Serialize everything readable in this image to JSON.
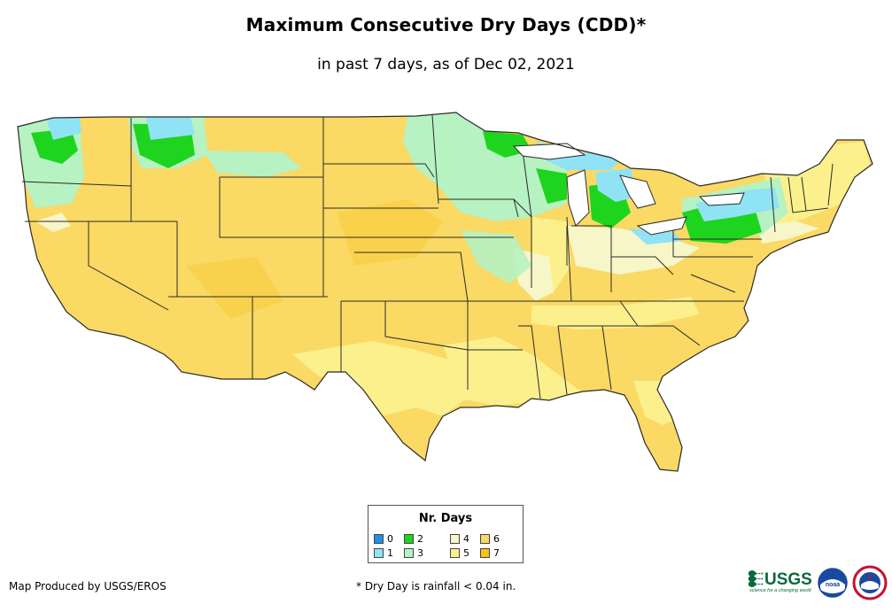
{
  "title": "Maximum Consecutive Dry Days (CDD)*",
  "subtitle": "in past 7 days, as of Dec 02, 2021",
  "legend": {
    "title": "Nr. Days",
    "items": [
      {
        "label": "0",
        "color": "#1e90e6"
      },
      {
        "label": "1",
        "color": "#8fe3f5"
      },
      {
        "label": "2",
        "color": "#1ed41e"
      },
      {
        "label": "3",
        "color": "#b6f2c2"
      },
      {
        "label": "4",
        "color": "#f7f6c8"
      },
      {
        "label": "5",
        "color": "#fbf08c"
      },
      {
        "label": "6",
        "color": "#fad964"
      },
      {
        "label": "7",
        "color": "#f5c21c"
      }
    ]
  },
  "footer": {
    "credit": "Map Produced by USGS/EROS",
    "note": "* Dry Day is rainfall < 0.04 in."
  },
  "logos": {
    "usgs_text": "USGS",
    "usgs_tagline": "science for a changing world",
    "noaa_text": "noaa"
  },
  "map": {
    "base_color": "#fad964",
    "outline_color": "#2a2a2a"
  }
}
